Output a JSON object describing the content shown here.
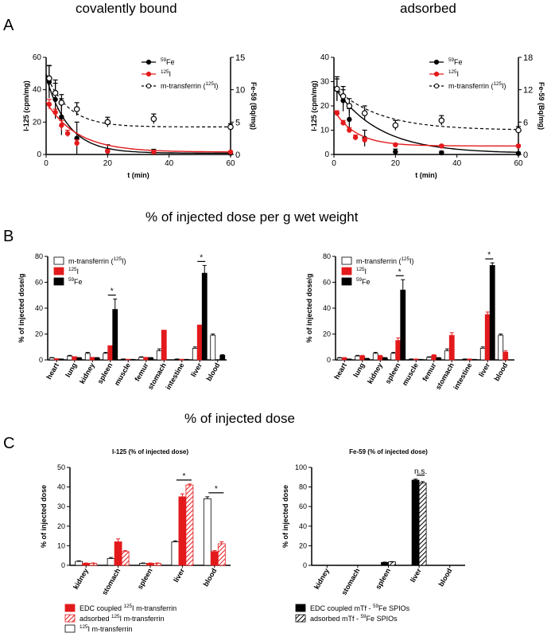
{
  "section_labels": [
    "A",
    "B",
    "C"
  ],
  "headings": {
    "covalent": "covalently bound",
    "adsorbed": "adsorbed",
    "section_b": "% of injected dose per g wet weight",
    "section_c": "% of injected dose"
  },
  "colors": {
    "fe": "#000000",
    "i125": "#e31a1c",
    "transferrin": "#000000",
    "transferrin_bar": "#ffffff",
    "adsorbed_hatch": "#e31a1c"
  },
  "chart_data": [
    {
      "id": "A_left",
      "type": "line",
      "xlabel": "t (min)",
      "ylabel": "I-125 (cpm/mg)",
      "y2label": "Fe-59 (Bq/mg)",
      "xlim": [
        0,
        60
      ],
      "ylim": [
        0,
        60
      ],
      "y2lim": [
        0,
        15
      ],
      "x_ticks": [
        0,
        20,
        40,
        60
      ],
      "y_ticks": [
        0,
        20,
        40,
        60
      ],
      "y2_ticks": [
        0,
        5,
        10,
        15
      ],
      "legend": [
        "59Fe",
        "125I",
        "m-transferrin (125I)"
      ],
      "series": [
        {
          "name": "59Fe",
          "axis": "y2",
          "style": "solid-black",
          "x": [
            1,
            3,
            5,
            10,
            20,
            35,
            60
          ],
          "y": [
            11.2,
            8.5,
            5.8,
            2.5,
            0.5,
            0.3,
            0.2
          ],
          "err": [
            2.5,
            3.0,
            2.8,
            2.5,
            1.0,
            0.5,
            0.3
          ]
        },
        {
          "name": "125I",
          "axis": "y",
          "style": "solid-red",
          "x": [
            1,
            3,
            5,
            7,
            10,
            20,
            35,
            60
          ],
          "y": [
            31,
            26,
            18,
            13,
            7,
            2,
            1.5,
            1.5
          ],
          "err": [
            3,
            2,
            3,
            2,
            2,
            1,
            0.5,
            0.5
          ]
        },
        {
          "name": "m-transferrin (125I)",
          "axis": "y",
          "style": "dashed-open",
          "x": [
            1,
            3,
            5,
            10,
            20,
            35,
            60
          ],
          "y": [
            47,
            38,
            32,
            28,
            20,
            22,
            17
          ],
          "err": [
            8,
            6,
            5,
            4,
            3,
            3,
            2
          ]
        }
      ]
    },
    {
      "id": "A_right",
      "type": "line",
      "xlabel": "t (min)",
      "ylabel": "I-125 (cpm/mg)",
      "y2label": "Fe-59 (Bq/mg)",
      "xlim": [
        0,
        60
      ],
      "ylim": [
        0,
        40
      ],
      "y2lim": [
        0,
        18
      ],
      "x_ticks": [
        0,
        20,
        40,
        60
      ],
      "y_ticks": [
        0,
        10,
        20,
        30,
        40
      ],
      "y2_ticks": [
        0,
        6,
        12,
        18
      ],
      "legend": [
        "59Fe",
        "125I",
        "m-transferrin (125I)"
      ],
      "series": [
        {
          "name": "59Fe",
          "axis": "y2",
          "style": "solid-black",
          "x": [
            1,
            3,
            5,
            10,
            20,
            35,
            60
          ],
          "y": [
            12,
            10,
            6.5,
            3,
            0.5,
            0.3,
            0.2
          ],
          "err": [
            2,
            2,
            2,
            1.5,
            0.5,
            0.3,
            0.2
          ]
        },
        {
          "name": "125I",
          "axis": "y",
          "style": "solid-red",
          "x": [
            1,
            3,
            5,
            7,
            10,
            20,
            35,
            60
          ],
          "y": [
            17,
            13,
            10,
            7,
            6,
            4,
            3.5,
            3.5
          ],
          "err": [
            1,
            1,
            1,
            1,
            0.5,
            0.5,
            0.5,
            0.5
          ]
        },
        {
          "name": "m-transferrin (125I)",
          "axis": "y",
          "style": "dashed-open",
          "x": [
            1,
            3,
            5,
            10,
            20,
            35,
            60
          ],
          "y": [
            27,
            24,
            20,
            17,
            12,
            14,
            10
          ],
          "err": [
            5,
            4,
            3,
            3,
            2,
            2,
            1.5
          ]
        }
      ]
    },
    {
      "id": "B_left",
      "type": "bar",
      "ylabel": "% of injected dose/g",
      "ylim": [
        0,
        80
      ],
      "y_ticks": [
        0,
        20,
        40,
        60,
        80
      ],
      "categories": [
        "heart",
        "lung",
        "kidney",
        "spleen",
        "muscle",
        "femur",
        "stomach",
        "intestine",
        "liver",
        "blood"
      ],
      "legend": [
        "m-transferrin (125I)",
        "125I",
        "59Fe"
      ],
      "series": [
        {
          "name": "m-transferrin (125I)",
          "fill": "white",
          "values": [
            1.5,
            3,
            5,
            5,
            0.5,
            2,
            7,
            0.5,
            9,
            19
          ],
          "err": [
            0.3,
            0.5,
            0.8,
            0.8,
            0.2,
            0.4,
            1.5,
            0.2,
            1,
            1
          ]
        },
        {
          "name": "125I",
          "fill": "red",
          "values": [
            1,
            2.5,
            2,
            11,
            0.5,
            2,
            23,
            0.5,
            27,
            0
          ]
        },
        {
          "name": "59Fe",
          "fill": "black",
          "values": [
            0.5,
            1.5,
            1.5,
            39,
            0.3,
            1.5,
            0,
            0.3,
            67,
            3.5
          ],
          "err": [
            0.2,
            0.3,
            0.3,
            8,
            0.1,
            0.3,
            0,
            0.1,
            6,
            0.5
          ]
        }
      ],
      "significance": [
        {
          "category": "spleen",
          "label": "*"
        },
        {
          "category": "liver",
          "label": "*"
        }
      ]
    },
    {
      "id": "B_right",
      "type": "bar",
      "ylabel": "% of injected dose/g",
      "ylim": [
        0,
        80
      ],
      "y_ticks": [
        0,
        20,
        40,
        60,
        80
      ],
      "categories": [
        "heart",
        "lung",
        "kidney",
        "spleen",
        "muscle",
        "femur",
        "stomach",
        "intestine",
        "liver",
        "blood"
      ],
      "legend": [
        "m-transferrin (125I)",
        "125I",
        "59Fe"
      ],
      "series": [
        {
          "name": "m-transferrin (125I)",
          "fill": "white",
          "values": [
            1.5,
            3,
            5,
            5,
            0.5,
            2,
            7,
            0.5,
            9,
            19
          ],
          "err": [
            0.3,
            0.5,
            0.8,
            0.8,
            0.2,
            0.4,
            1.5,
            0.2,
            1,
            1
          ]
        },
        {
          "name": "125I",
          "fill": "red",
          "values": [
            1.5,
            3,
            3,
            15,
            0.5,
            3.5,
            19,
            0.5,
            35,
            6
          ],
          "err": [
            0.3,
            0.5,
            0.5,
            2,
            0.2,
            0.5,
            2,
            0.2,
            2,
            1
          ]
        },
        {
          "name": "59Fe",
          "fill": "black",
          "values": [
            0.5,
            1,
            1.5,
            54,
            0.3,
            1.5,
            0,
            0.3,
            73,
            0
          ],
          "err": [
            0.2,
            0.2,
            0.3,
            8,
            0.1,
            0.3,
            0,
            0.1,
            2,
            0
          ]
        }
      ],
      "significance": [
        {
          "category": "spleen",
          "label": "*"
        },
        {
          "category": "liver",
          "label": "*"
        }
      ]
    },
    {
      "id": "C_left",
      "type": "bar",
      "title": "I-125 (% of injected dose)",
      "ylabel": "% of injected dose",
      "ylim": [
        0,
        50
      ],
      "y_ticks": [
        0,
        10,
        20,
        30,
        40,
        50
      ],
      "categories": [
        "kidney",
        "stomach",
        "spleen",
        "liver",
        "blood"
      ],
      "legend": [
        "EDC coupled 125I m-transferrin",
        "adsorbed 125I m-transferrin",
        "125I m-transferrin"
      ],
      "series": [
        {
          "name": "125I m-transferrin",
          "fill": "white",
          "values": [
            2,
            3.5,
            1,
            12,
            34
          ],
          "err": [
            0.3,
            0.5,
            0.2,
            0.5,
            1
          ]
        },
        {
          "name": "EDC coupled 125I m-transferrin",
          "fill": "red",
          "values": [
            1,
            12,
            1,
            35,
            7
          ],
          "err": [
            0.2,
            1.5,
            0.2,
            1.5,
            0.5
          ]
        },
        {
          "name": "adsorbed 125I m-transferrin",
          "fill": "hatch-red",
          "values": [
            1,
            7,
            1,
            41,
            11
          ],
          "err": [
            0.2,
            0.5,
            0.2,
            0.5,
            1
          ]
        }
      ],
      "significance": [
        {
          "category": "liver",
          "label": "*"
        },
        {
          "category": "blood",
          "label": "*"
        }
      ]
    },
    {
      "id": "C_right",
      "type": "bar",
      "title": "Fe-59 (% of injected dose)",
      "ylabel": "% of injected dose",
      "ylim": [
        0,
        100
      ],
      "y_ticks": [
        0,
        20,
        40,
        60,
        80,
        100
      ],
      "categories": [
        "kidney",
        "stomach",
        "spleen",
        "liver",
        "blood"
      ],
      "legend": [
        "EDC coupled mTf - 59Fe SPIOs",
        "adsorbed mTf - 59Fe SPIOs"
      ],
      "series": [
        {
          "name": "EDC coupled mTf - 59Fe SPIOs",
          "fill": "black",
          "values": [
            0,
            0,
            3,
            87,
            0
          ],
          "err": [
            0,
            0,
            0.3,
            1,
            0
          ]
        },
        {
          "name": "adsorbed mTf - 59Fe SPIOs",
          "fill": "hatch-black",
          "values": [
            0,
            0,
            3.5,
            84,
            0
          ],
          "err": [
            0,
            0,
            0.3,
            1.5,
            0
          ]
        }
      ],
      "significance": [
        {
          "category": "liver",
          "label": "n.s."
        }
      ]
    }
  ]
}
